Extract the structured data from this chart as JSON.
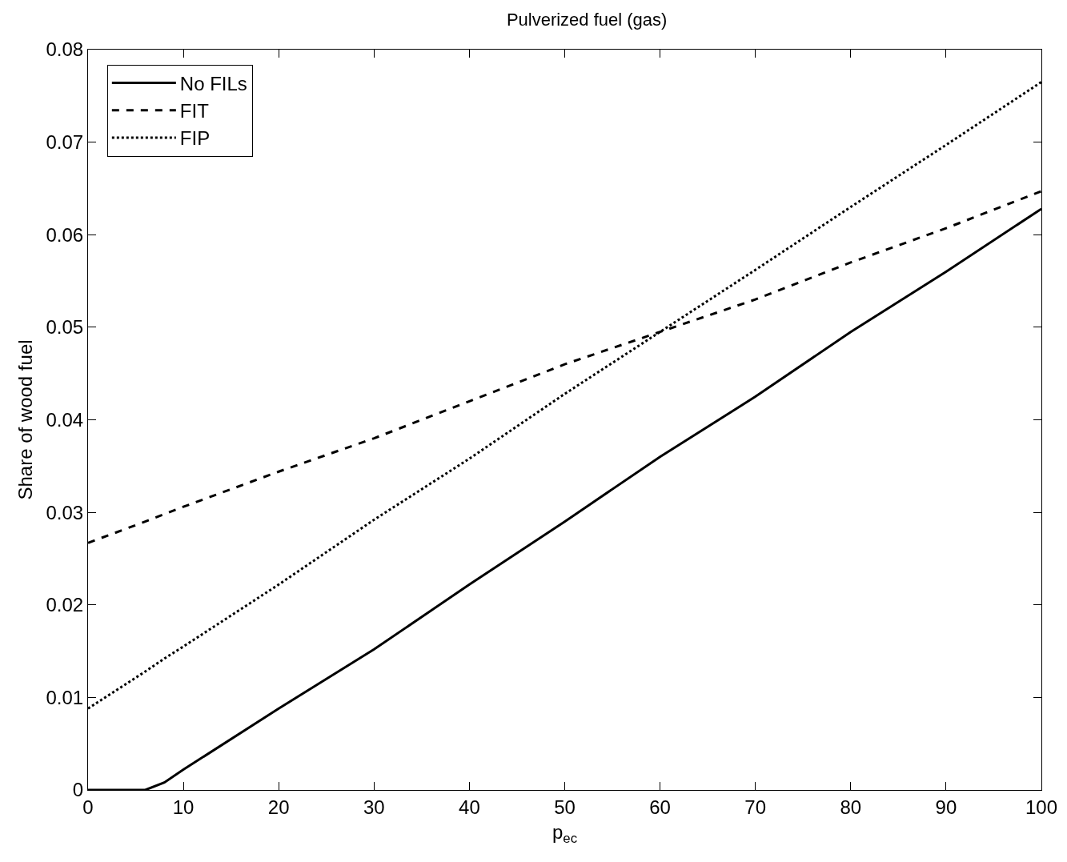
{
  "chart_data": {
    "type": "line",
    "title": "Pulverized fuel (gas)",
    "xlabel": "p$_{ec}$",
    "ylabel": "Share of wood fuel",
    "x": [
      0,
      6,
      8,
      10,
      20,
      30,
      40,
      50,
      60,
      70,
      80,
      90,
      100
    ],
    "series": [
      {
        "name": "No FILs",
        "color": "#000000",
        "line_style": "solid",
        "values": [
          0,
          0,
          0.0008,
          0.0022,
          0.0088,
          0.0152,
          0.0222,
          0.029,
          0.036,
          0.0425,
          0.0495,
          0.056,
          0.0628
        ]
      },
      {
        "name": "FIT",
        "color": "#000000",
        "line_style": "dashed",
        "values": [
          0.0267,
          0.029,
          0.0298,
          0.0306,
          0.0344,
          0.038,
          0.042,
          0.046,
          0.0495,
          0.053,
          0.057,
          0.0607,
          0.0647
        ]
      },
      {
        "name": "FIP",
        "color": "#000000",
        "line_style": "dotted",
        "values": [
          0.0088,
          0.0128,
          0.0142,
          0.0155,
          0.0222,
          0.0292,
          0.0358,
          0.0428,
          0.0495,
          0.0562,
          0.063,
          0.0697,
          0.0765
        ]
      }
    ],
    "xlim": [
      0,
      100
    ],
    "xticks": [
      0,
      10,
      20,
      30,
      40,
      50,
      60,
      70,
      80,
      90,
      100
    ],
    "ylim": [
      0,
      0.08
    ],
    "yticks": [
      0,
      0.01,
      0.02,
      0.03,
      0.04,
      0.05,
      0.06,
      0.07,
      0.08
    ],
    "legend": "top left",
    "grid": false,
    "marker": "none"
  }
}
